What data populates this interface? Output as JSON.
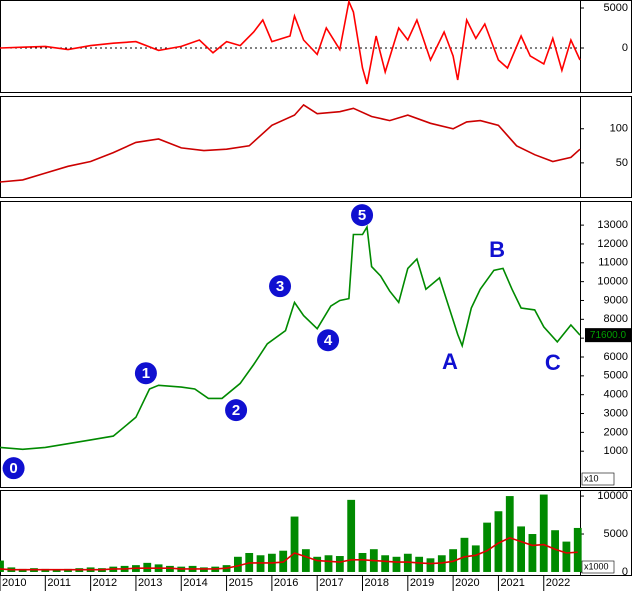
{
  "chart_data": [
    {
      "type": "line",
      "xlim": [
        2010,
        2022.8
      ],
      "ylim": [
        -5500,
        6000
      ],
      "yticks": [
        0,
        5000
      ],
      "zero_line": true,
      "x": [
        2010,
        2010.5,
        2011,
        2011.5,
        2012,
        2012.5,
        2013,
        2013.5,
        2014,
        2014.4,
        2014.7,
        2015,
        2015.3,
        2015.6,
        2015.8,
        2016,
        2016.4,
        2016.5,
        2016.7,
        2017,
        2017.2,
        2017.5,
        2017.7,
        2017.8,
        2018,
        2018.1,
        2018.3,
        2018.5,
        2018.8,
        2019,
        2019.2,
        2019.5,
        2019.8,
        2020,
        2020.1,
        2020.3,
        2020.5,
        2020.7,
        2021,
        2021.2,
        2021.5,
        2021.7,
        2022,
        2022.2,
        2022.4,
        2022.6,
        2022.8
      ],
      "series": [
        {
          "color": "#ff0000",
          "values": [
            0,
            100,
            200,
            -200,
            300,
            600,
            800,
            -300,
            200,
            1000,
            -600,
            800,
            300,
            2000,
            3500,
            800,
            1500,
            4000,
            1000,
            -800,
            2500,
            -200,
            5800,
            4500,
            -2500,
            -4500,
            1500,
            -3000,
            2500,
            1000,
            3500,
            -1500,
            2000,
            -1000,
            -4000,
            3500,
            1200,
            3000,
            -1500,
            -2500,
            1500,
            -1000,
            -2000,
            1200,
            -2800,
            1000,
            -1500
          ]
        }
      ]
    },
    {
      "type": "line",
      "xlim": [
        2010,
        2022.8
      ],
      "ylim": [
        0,
        148
      ],
      "yticks": [
        50,
        100
      ],
      "x": [
        2010,
        2010.5,
        2011,
        2011.5,
        2012,
        2012.5,
        2013,
        2013.5,
        2014,
        2014.5,
        2015,
        2015.5,
        2016,
        2016.5,
        2016.7,
        2017,
        2017.5,
        2017.8,
        2018.2,
        2018.6,
        2019,
        2019.5,
        2020,
        2020.3,
        2020.6,
        2021,
        2021.4,
        2021.8,
        2022.2,
        2022.6,
        2022.8
      ],
      "series": [
        {
          "color": "#cc0000",
          "values": [
            22,
            25,
            35,
            45,
            52,
            65,
            80,
            85,
            72,
            68,
            70,
            75,
            105,
            120,
            135,
            122,
            125,
            130,
            118,
            112,
            120,
            108,
            100,
            110,
            112,
            105,
            75,
            62,
            52,
            58,
            70
          ]
        }
      ]
    },
    {
      "type": "line",
      "xlim": [
        2010,
        2022.8
      ],
      "ylim": [
        -900,
        14280
      ],
      "yticks": [
        1000,
        2000,
        3000,
        4000,
        5000,
        6000,
        7000,
        8000,
        9000,
        10000,
        11000,
        12000,
        13000
      ],
      "unit_label": "x10",
      "last_price_label": "71600.0",
      "last_price_color": "#00a000",
      "x": [
        2010,
        2010.5,
        2011,
        2011.5,
        2012,
        2012.5,
        2013,
        2013.3,
        2013.5,
        2014,
        2014.3,
        2014.6,
        2014.9,
        2015.3,
        2015.6,
        2015.9,
        2016.3,
        2016.5,
        2016.7,
        2017,
        2017.3,
        2017.5,
        2017.7,
        2017.8,
        2018,
        2018.1,
        2018.2,
        2018.4,
        2018.6,
        2018.8,
        2019,
        2019.2,
        2019.4,
        2019.7,
        2019.9,
        2020.1,
        2020.2,
        2020.4,
        2020.6,
        2020.9,
        2021.1,
        2021.3,
        2021.5,
        2021.8,
        2022,
        2022.3,
        2022.6,
        2022.8
      ],
      "series": [
        {
          "color": "#008a00",
          "values": [
            1200,
            1100,
            1200,
            1400,
            1600,
            1800,
            2800,
            4300,
            4500,
            4400,
            4300,
            3800,
            3800,
            4600,
            5600,
            6700,
            7400,
            8900,
            8200,
            7500,
            8700,
            9000,
            9100,
            12500,
            12500,
            12900,
            10800,
            10300,
            9500,
            8900,
            10700,
            11200,
            9600,
            10200,
            8700,
            7200,
            6600,
            8600,
            9600,
            10600,
            10700,
            9600,
            8600,
            8500,
            7600,
            6800,
            7700,
            7160
          ]
        }
      ],
      "annotations": [
        {
          "text": "0",
          "style": "circled",
          "x": 2010.3,
          "y": 100
        },
        {
          "text": "1",
          "style": "circled",
          "x": 2013.22,
          "y": 5140
        },
        {
          "text": "2",
          "style": "circled",
          "x": 2015.21,
          "y": 3180
        },
        {
          "text": "3",
          "style": "circled",
          "x": 2016.18,
          "y": 9760
        },
        {
          "text": "4",
          "style": "circled",
          "x": 2017.24,
          "y": 6890
        },
        {
          "text": "5",
          "style": "circled",
          "x": 2017.99,
          "y": 13530
        },
        {
          "text": "A",
          "style": "plain",
          "x": 2019.93,
          "y": 5670
        },
        {
          "text": "B",
          "style": "plain",
          "x": 2020.97,
          "y": 11620
        },
        {
          "text": "C",
          "style": "plain",
          "x": 2022.2,
          "y": 5620
        }
      ]
    },
    {
      "type": "bar",
      "xlim": [
        2010,
        2022.8
      ],
      "ylim": [
        -400,
        10800
      ],
      "yticks": [
        0,
        5000,
        10000
      ],
      "unit_label": "x1000",
      "xticks": [
        2010,
        2011,
        2012,
        2013,
        2014,
        2015,
        2016,
        2017,
        2018,
        2019,
        2020,
        2021,
        2022
      ],
      "x": [
        2010,
        2010.25,
        2010.5,
        2010.75,
        2011,
        2011.25,
        2011.5,
        2011.75,
        2012,
        2012.25,
        2012.5,
        2012.75,
        2013,
        2013.25,
        2013.5,
        2013.75,
        2014,
        2014.25,
        2014.5,
        2014.75,
        2015,
        2015.25,
        2015.5,
        2015.75,
        2016,
        2016.25,
        2016.5,
        2016.75,
        2017,
        2017.25,
        2017.5,
        2017.75,
        2018,
        2018.25,
        2018.5,
        2018.75,
        2019,
        2019.25,
        2019.5,
        2019.75,
        2020,
        2020.25,
        2020.5,
        2020.75,
        2021,
        2021.25,
        2021.5,
        2021.75,
        2022,
        2022.25,
        2022.5,
        2022.75
      ],
      "series": [
        {
          "type": "bar",
          "color": "#008a00",
          "values": [
            1500,
            600,
            400,
            500,
            400,
            300,
            400,
            500,
            600,
            500,
            700,
            800,
            900,
            1200,
            1000,
            800,
            700,
            800,
            600,
            700,
            900,
            2000,
            2500,
            2200,
            2400,
            2800,
            7300,
            3000,
            2000,
            2200,
            2100,
            9500,
            2500,
            3000,
            2200,
            2000,
            2400,
            2000,
            1800,
            2200,
            3000,
            4500,
            3500,
            6500,
            8000,
            10000,
            6000,
            5000,
            10200,
            5500,
            4000,
            5800
          ]
        },
        {
          "type": "line",
          "color": "#e00000",
          "values": [
            400,
            300,
            300,
            300,
            300,
            300,
            300,
            300,
            300,
            300,
            400,
            400,
            500,
            500,
            500,
            500,
            400,
            400,
            400,
            400,
            500,
            800,
            1200,
            1200,
            1200,
            1300,
            2500,
            2000,
            1500,
            1400,
            1300,
            1600,
            1600,
            1500,
            1400,
            1300,
            1300,
            1200,
            1100,
            1200,
            1400,
            2000,
            2200,
            2800,
            3800,
            4500,
            4000,
            3500,
            3600,
            3000,
            2500,
            2600
          ]
        }
      ]
    }
  ]
}
